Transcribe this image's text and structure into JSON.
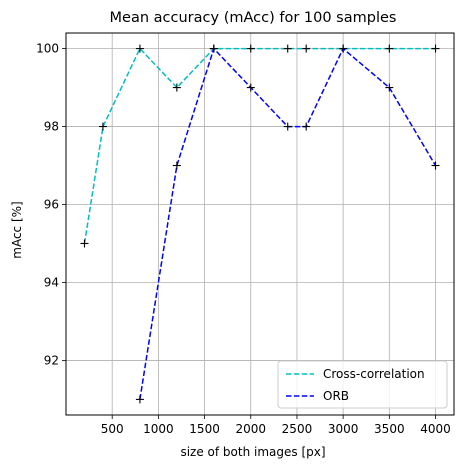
{
  "chart_data": {
    "type": "line",
    "title": "Mean accuracy (mAcc) for 100 samples",
    "xlabel": "size of both images [px]",
    "ylabel": "mAcc [%]",
    "xlim": [
      0,
      4200
    ],
    "ylim": [
      90.6,
      100.4
    ],
    "xticks": [
      "500",
      "1000",
      "1500",
      "2000",
      "2500",
      "3000",
      "3500",
      "4000"
    ],
    "yticks": [
      "92",
      "94",
      "96",
      "98",
      "100"
    ],
    "grid": true,
    "legend_position": "bottom-right",
    "series": [
      {
        "name": "Cross-correlation",
        "color": "#00bfbf",
        "line_style": "dashed",
        "marker": "plus",
        "x": [
          200,
          400,
          800,
          1200,
          1600,
          2000,
          2400,
          2600,
          3000,
          3500,
          4000
        ],
        "y": [
          95,
          98,
          100,
          99,
          100,
          100,
          100,
          100,
          100,
          100,
          100
        ]
      },
      {
        "name": "ORB",
        "color": "#0000ff",
        "line_style": "dashed",
        "marker": "plus",
        "x": [
          800,
          1200,
          1600,
          2000,
          2400,
          2600,
          3000,
          3500,
          4000
        ],
        "y": [
          91,
          97,
          100,
          99,
          98,
          98,
          100,
          99,
          97
        ]
      }
    ]
  }
}
